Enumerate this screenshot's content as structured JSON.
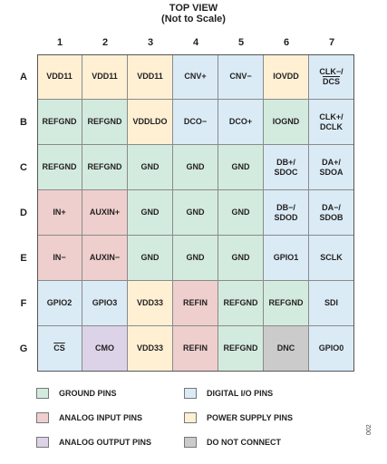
{
  "title_line1": "TOP VIEW",
  "title_line2": "(Not to Scale)",
  "colors": {
    "ground": "#d3ebde",
    "digital": "#daebf6",
    "analog-in": "#eecfcd",
    "power": "#fff0d4",
    "analog-out": "#dcd3e8",
    "dnc": "#cbcbcb"
  },
  "columns": [
    "1",
    "2",
    "3",
    "4",
    "5",
    "6",
    "7"
  ],
  "rows": [
    {
      "label": "A",
      "pins": [
        {
          "name": "VDD11",
          "type": "power"
        },
        {
          "name": "VDD11",
          "type": "power"
        },
        {
          "name": "VDD11",
          "type": "power"
        },
        {
          "name": "CNV+",
          "type": "digital"
        },
        {
          "name": "CNV−",
          "type": "digital"
        },
        {
          "name": "IOVDD",
          "type": "power"
        },
        {
          "name": "CLK−/\nDCS",
          "type": "digital",
          "overline_line2": true
        }
      ]
    },
    {
      "label": "B",
      "pins": [
        {
          "name": "REFGND",
          "type": "ground"
        },
        {
          "name": "REFGND",
          "type": "ground"
        },
        {
          "name": "VDDLDO",
          "type": "power"
        },
        {
          "name": "DCO−",
          "type": "digital"
        },
        {
          "name": "DCO+",
          "type": "digital"
        },
        {
          "name": "IOGND",
          "type": "ground"
        },
        {
          "name": "CLK+/\nDCLK",
          "type": "digital"
        }
      ]
    },
    {
      "label": "C",
      "pins": [
        {
          "name": "REFGND",
          "type": "ground"
        },
        {
          "name": "REFGND",
          "type": "ground"
        },
        {
          "name": "GND",
          "type": "ground"
        },
        {
          "name": "GND",
          "type": "ground"
        },
        {
          "name": "GND",
          "type": "ground"
        },
        {
          "name": "DB+/\nSDOC",
          "type": "digital"
        },
        {
          "name": "DA+/\nSDOA",
          "type": "digital"
        }
      ]
    },
    {
      "label": "D",
      "pins": [
        {
          "name": "IN+",
          "type": "analog-in"
        },
        {
          "name": "AUXIN+",
          "type": "analog-in"
        },
        {
          "name": "GND",
          "type": "ground"
        },
        {
          "name": "GND",
          "type": "ground"
        },
        {
          "name": "GND",
          "type": "ground"
        },
        {
          "name": "DB−/\nSDOD",
          "type": "digital"
        },
        {
          "name": "DA−/\nSDOB",
          "type": "digital"
        }
      ]
    },
    {
      "label": "E",
      "pins": [
        {
          "name": "IN−",
          "type": "analog-in"
        },
        {
          "name": "AUXIN−",
          "type": "analog-in"
        },
        {
          "name": "GND",
          "type": "ground"
        },
        {
          "name": "GND",
          "type": "ground"
        },
        {
          "name": "GND",
          "type": "ground"
        },
        {
          "name": "GPIO1",
          "type": "digital"
        },
        {
          "name": "SCLK",
          "type": "digital"
        }
      ]
    },
    {
      "label": "F",
      "pins": [
        {
          "name": "GPIO2",
          "type": "digital"
        },
        {
          "name": "GPIO3",
          "type": "digital"
        },
        {
          "name": "VDD33",
          "type": "power"
        },
        {
          "name": "REFIN",
          "type": "analog-in"
        },
        {
          "name": "REFGND",
          "type": "ground"
        },
        {
          "name": "REFGND",
          "type": "ground"
        },
        {
          "name": "SDI",
          "type": "digital"
        }
      ]
    },
    {
      "label": "G",
      "pins": [
        {
          "name": "CS",
          "type": "digital",
          "overline": true
        },
        {
          "name": "CMO",
          "type": "analog-out"
        },
        {
          "name": "VDD33",
          "type": "power"
        },
        {
          "name": "REFIN",
          "type": "analog-in"
        },
        {
          "name": "REFGND",
          "type": "ground"
        },
        {
          "name": "DNC",
          "type": "dnc"
        },
        {
          "name": "GPIO0",
          "type": "digital"
        }
      ]
    }
  ],
  "legend": [
    {
      "label": "GROUND PINS",
      "type": "ground"
    },
    {
      "label": "DIGITAL I/O PINS",
      "type": "digital"
    },
    {
      "label": "ANALOG INPUT PINS",
      "type": "analog-in"
    },
    {
      "label": "POWER SUPPLY PINS",
      "type": "power"
    },
    {
      "label": "ANALOG OUTPUT PINS",
      "type": "analog-out"
    },
    {
      "label": "DO NOT CONNECT",
      "type": "dnc"
    }
  ],
  "figure_code": "002"
}
